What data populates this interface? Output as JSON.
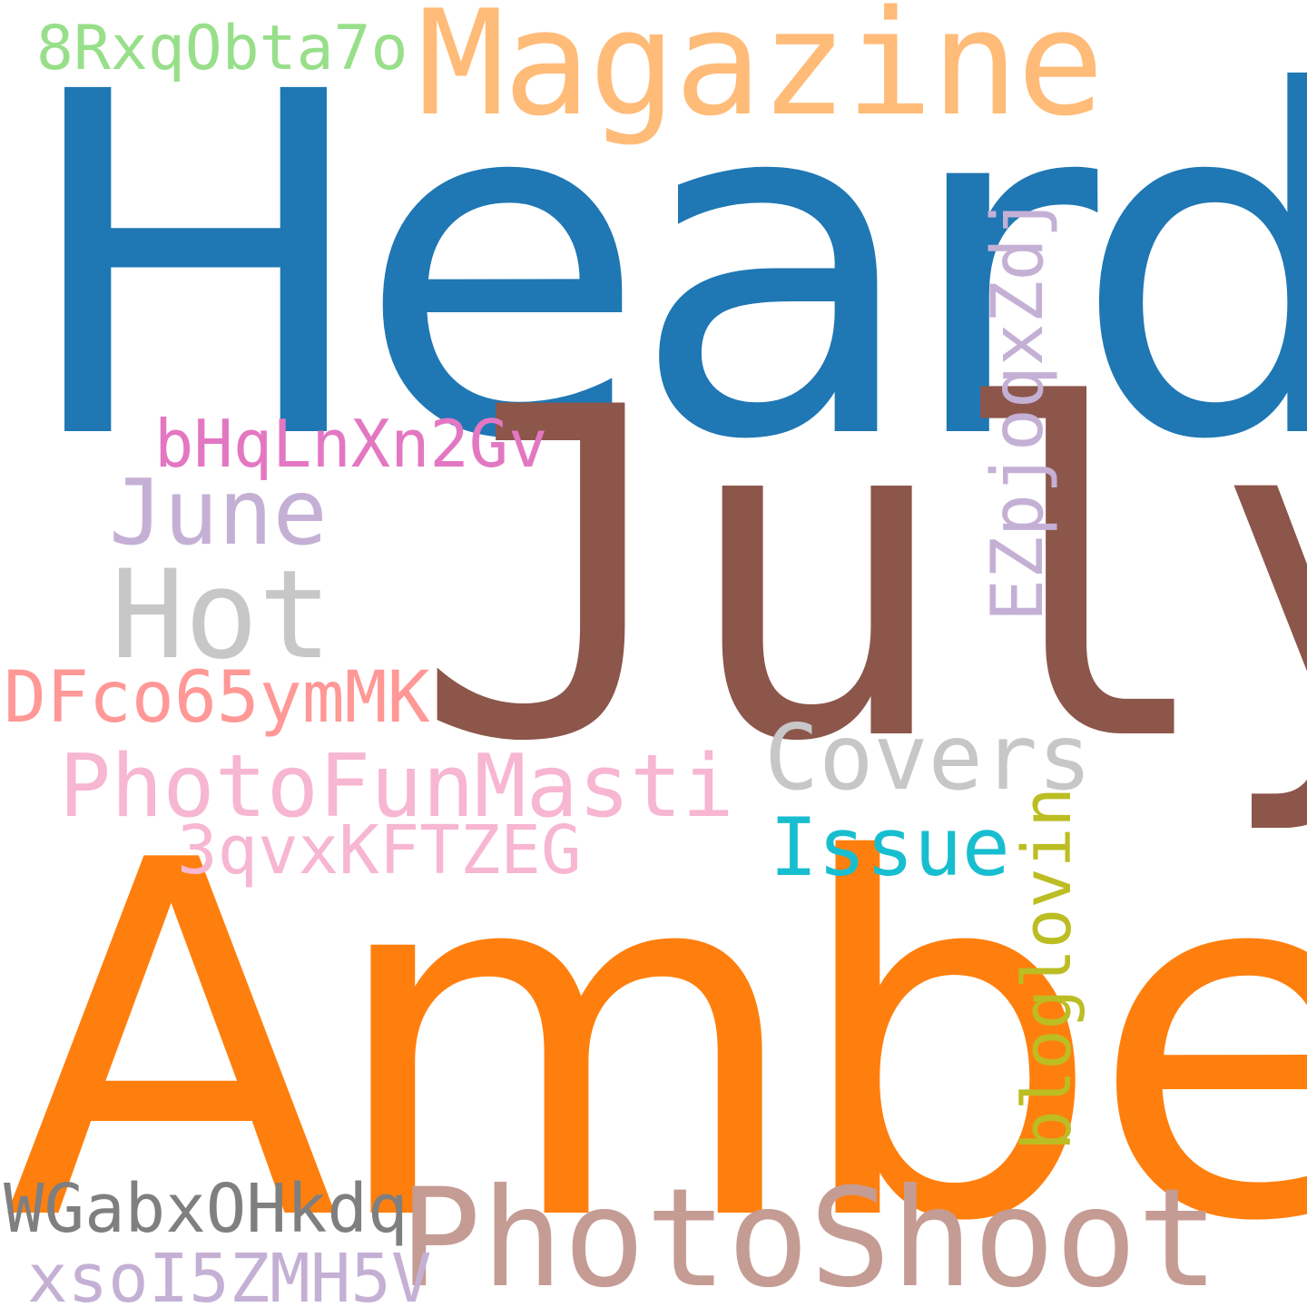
{
  "words": [
    {
      "text": "Heard",
      "color": "#1f77b4"
    },
    {
      "text": "Amber",
      "color": "#ff7f0e"
    },
    {
      "text": "July",
      "color": "#8c564b"
    },
    {
      "text": "Magazine",
      "color": "#ffbb78"
    },
    {
      "text": "PhotoShoot",
      "color": "#c49c94"
    },
    {
      "text": "Hot",
      "color": "#c7c7c7"
    },
    {
      "text": "June",
      "color": "#c5b0d5"
    },
    {
      "text": "Covers",
      "color": "#c7c7c7"
    },
    {
      "text": "PhotoFunMasti",
      "color": "#f7b6d2"
    },
    {
      "text": "Issue",
      "color": "#17becf"
    },
    {
      "text": "DFco65ymMK",
      "color": "#ff9896"
    },
    {
      "text": "3qvxKFTZEG",
      "color": "#f7b6d2"
    },
    {
      "text": "bHqLnXn2Gv",
      "color": "#e377c2"
    },
    {
      "text": "8RxqObta7o",
      "color": "#98df8a"
    },
    {
      "text": "WGabxOHkdq",
      "color": "#7f7f7f"
    },
    {
      "text": "xsoI5ZMH5V",
      "color": "#c5b0d5"
    },
    {
      "text": "EZpjoqxZdj",
      "color": "#c5b0d5"
    },
    {
      "text": "bloglovin",
      "color": "#bcbd22"
    }
  ]
}
